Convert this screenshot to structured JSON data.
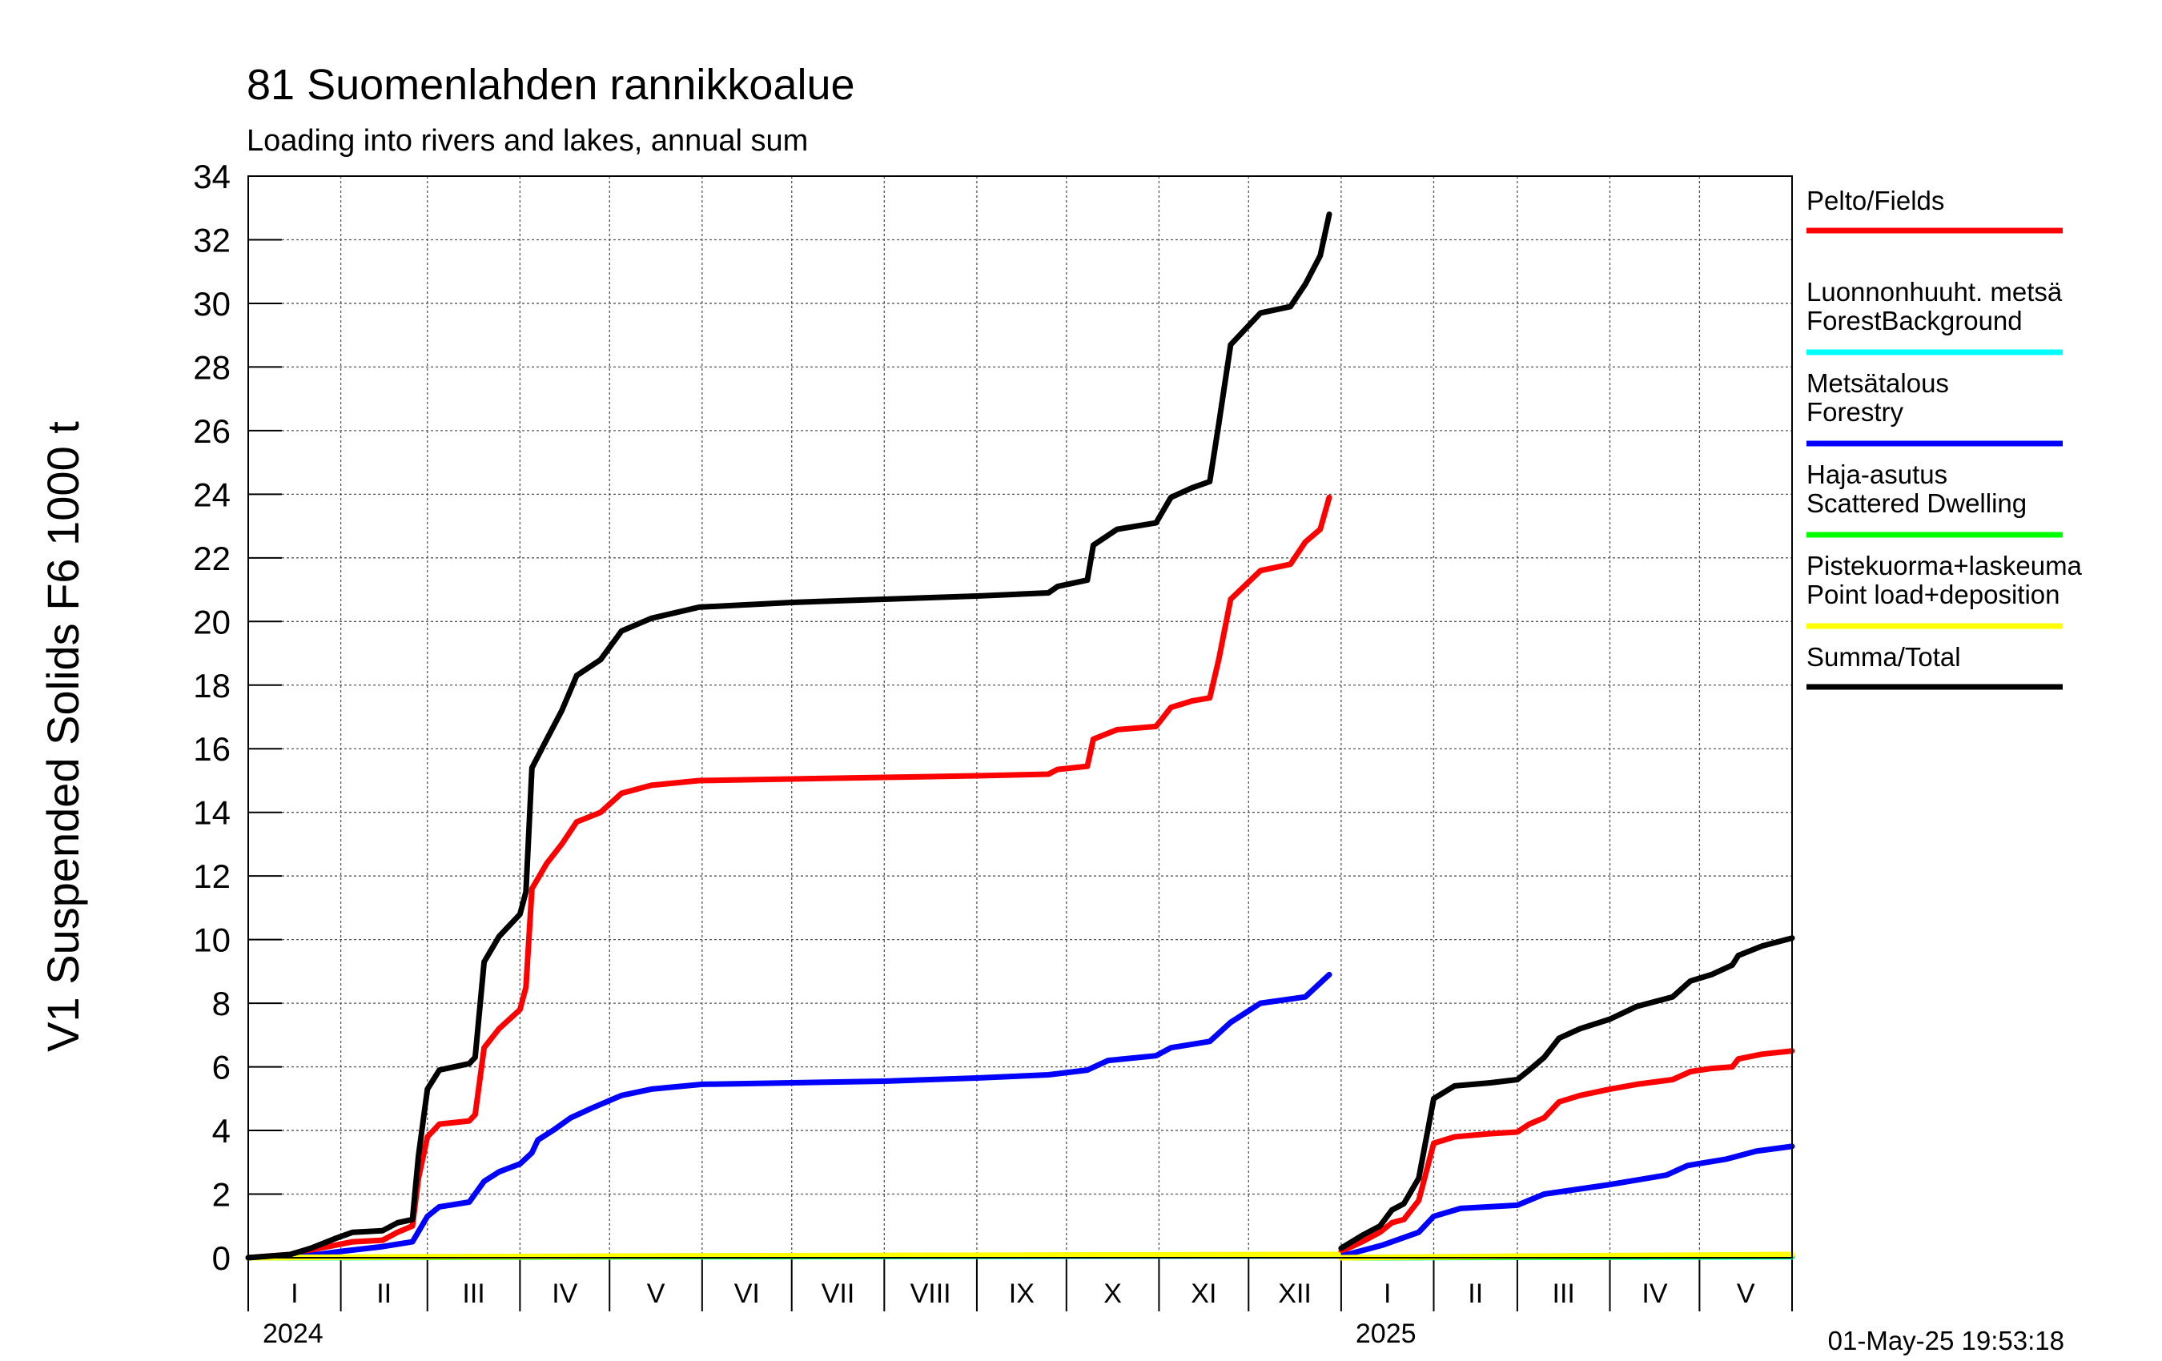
{
  "chart_data": {
    "type": "line",
    "title": "81 Suomenlahden rannikkoalue",
    "subtitle": "Loading into rivers and lakes, annual sum",
    "ylabel": "V1 Suspended Solids F6 1000 t",
    "ylim": [
      0,
      34
    ],
    "yticks": [
      0,
      2,
      4,
      6,
      8,
      10,
      12,
      14,
      16,
      18,
      20,
      22,
      24,
      26,
      28,
      30,
      32,
      34
    ],
    "xlim": [
      "2024-01-01",
      "2025-06-01"
    ],
    "grid": true,
    "legend_position": "right",
    "timestamp": "01-May-25 19:53:18",
    "months": [
      {
        "label": "I",
        "start": "2024-01-01"
      },
      {
        "label": "II",
        "start": "2024-02-01"
      },
      {
        "label": "III",
        "start": "2024-03-01"
      },
      {
        "label": "IV",
        "start": "2024-04-01"
      },
      {
        "label": "V",
        "start": "2024-05-01"
      },
      {
        "label": "VI",
        "start": "2024-06-01"
      },
      {
        "label": "VII",
        "start": "2024-07-01"
      },
      {
        "label": "VIII",
        "start": "2024-08-01"
      },
      {
        "label": "IX",
        "start": "2024-09-01"
      },
      {
        "label": "X",
        "start": "2024-10-01"
      },
      {
        "label": "XI",
        "start": "2024-11-01"
      },
      {
        "label": "XII",
        "start": "2024-12-01"
      },
      {
        "label": "I",
        "start": "2025-01-01"
      },
      {
        "label": "II",
        "start": "2025-02-01"
      },
      {
        "label": "III",
        "start": "2025-03-01"
      },
      {
        "label": "IV",
        "start": "2025-04-01"
      },
      {
        "label": "V",
        "start": "2025-05-01"
      }
    ],
    "years": [
      {
        "label": "2024",
        "start": "2024-01-01"
      },
      {
        "label": "2025",
        "start": "2025-01-01"
      }
    ],
    "series": [
      {
        "name": "Pelto/Fields",
        "color": "#ff0000",
        "segments": [
          [
            [
              "2024-01-01",
              0
            ],
            [
              "2024-01-15",
              0.1
            ],
            [
              "2024-01-25",
              0.3
            ],
            [
              "2024-02-05",
              0.5
            ],
            [
              "2024-02-15",
              0.55
            ],
            [
              "2024-02-20",
              0.8
            ],
            [
              "2024-02-25",
              1.0
            ],
            [
              "2024-02-27",
              2.5
            ],
            [
              "2024-03-01",
              3.8
            ],
            [
              "2024-03-05",
              4.2
            ],
            [
              "2024-03-15",
              4.3
            ],
            [
              "2024-03-17",
              4.5
            ],
            [
              "2024-03-20",
              6.6
            ],
            [
              "2024-03-25",
              7.2
            ],
            [
              "2024-04-01",
              7.8
            ],
            [
              "2024-04-03",
              8.5
            ],
            [
              "2024-04-05",
              11.6
            ],
            [
              "2024-04-10",
              12.4
            ],
            [
              "2024-04-15",
              13.0
            ],
            [
              "2024-04-20",
              13.7
            ],
            [
              "2024-04-28",
              14.0
            ],
            [
              "2024-05-05",
              14.6
            ],
            [
              "2024-05-15",
              14.85
            ],
            [
              "2024-05-31",
              15.0
            ],
            [
              "2024-07-01",
              15.05
            ],
            [
              "2024-08-01",
              15.1
            ],
            [
              "2024-09-01",
              15.15
            ],
            [
              "2024-09-25",
              15.2
            ],
            [
              "2024-09-28",
              15.35
            ],
            [
              "2024-10-08",
              15.45
            ],
            [
              "2024-10-10",
              16.3
            ],
            [
              "2024-10-18",
              16.6
            ],
            [
              "2024-10-31",
              16.7
            ],
            [
              "2024-11-05",
              17.3
            ],
            [
              "2024-11-12",
              17.5
            ],
            [
              "2024-11-18",
              17.6
            ],
            [
              "2024-11-21",
              18.8
            ],
            [
              "2024-11-25",
              20.7
            ],
            [
              "2024-12-05",
              21.6
            ],
            [
              "2024-12-15",
              21.8
            ],
            [
              "2024-12-20",
              22.5
            ],
            [
              "2024-12-25",
              22.9
            ],
            [
              "2024-12-28",
              23.9
            ]
          ],
          [
            [
              "2025-01-01",
              0.2
            ],
            [
              "2025-01-08",
              0.5
            ],
            [
              "2025-01-14",
              0.8
            ],
            [
              "2025-01-18",
              1.1
            ],
            [
              "2025-01-22",
              1.2
            ],
            [
              "2025-01-27",
              1.8
            ],
            [
              "2025-02-01",
              3.6
            ],
            [
              "2025-02-08",
              3.8
            ],
            [
              "2025-02-20",
              3.9
            ],
            [
              "2025-03-01",
              3.95
            ],
            [
              "2025-03-05",
              4.2
            ],
            [
              "2025-03-10",
              4.4
            ],
            [
              "2025-03-15",
              4.9
            ],
            [
              "2025-03-22",
              5.1
            ],
            [
              "2025-04-01",
              5.3
            ],
            [
              "2025-04-10",
              5.45
            ],
            [
              "2025-04-22",
              5.6
            ],
            [
              "2025-04-28",
              5.85
            ],
            [
              "2025-05-05",
              5.95
            ],
            [
              "2025-05-12",
              6.0
            ],
            [
              "2025-05-14",
              6.25
            ],
            [
              "2025-05-22",
              6.4
            ],
            [
              "2025-06-01",
              6.5
            ]
          ]
        ]
      },
      {
        "name": "Luonnonhuuht. metsä ForestBackground",
        "color": "#00ffff",
        "segments": [
          [
            [
              "2024-01-01",
              0
            ],
            [
              "2024-06-01",
              0.03
            ],
            [
              "2024-12-31",
              0.06
            ]
          ],
          [
            [
              "2025-01-01",
              0
            ],
            [
              "2025-06-01",
              0.03
            ]
          ]
        ]
      },
      {
        "name": "Metsätalous Forestry",
        "color": "#0000ff",
        "segments": [
          [
            [
              "2024-01-01",
              0
            ],
            [
              "2024-01-20",
              0.05
            ],
            [
              "2024-02-01",
              0.2
            ],
            [
              "2024-02-15",
              0.35
            ],
            [
              "2024-02-25",
              0.5
            ],
            [
              "2024-03-01",
              1.3
            ],
            [
              "2024-03-05",
              1.6
            ],
            [
              "2024-03-15",
              1.75
            ],
            [
              "2024-03-20",
              2.4
            ],
            [
              "2024-03-25",
              2.7
            ],
            [
              "2024-04-01",
              2.95
            ],
            [
              "2024-04-05",
              3.3
            ],
            [
              "2024-04-07",
              3.7
            ],
            [
              "2024-04-12",
              4.0
            ],
            [
              "2024-04-18",
              4.4
            ],
            [
              "2024-04-25",
              4.7
            ],
            [
              "2024-05-05",
              5.1
            ],
            [
              "2024-05-15",
              5.3
            ],
            [
              "2024-06-01",
              5.45
            ],
            [
              "2024-07-01",
              5.5
            ],
            [
              "2024-08-01",
              5.55
            ],
            [
              "2024-09-01",
              5.65
            ],
            [
              "2024-09-25",
              5.75
            ],
            [
              "2024-10-08",
              5.9
            ],
            [
              "2024-10-15",
              6.2
            ],
            [
              "2024-10-31",
              6.35
            ],
            [
              "2024-11-05",
              6.6
            ],
            [
              "2024-11-18",
              6.8
            ],
            [
              "2024-11-25",
              7.4
            ],
            [
              "2024-12-05",
              8.0
            ],
            [
              "2024-12-20",
              8.2
            ],
            [
              "2024-12-28",
              8.9
            ]
          ],
          [
            [
              "2025-01-01",
              0.05
            ],
            [
              "2025-01-15",
              0.4
            ],
            [
              "2025-01-27",
              0.8
            ],
            [
              "2025-02-01",
              1.3
            ],
            [
              "2025-02-10",
              1.55
            ],
            [
              "2025-03-01",
              1.65
            ],
            [
              "2025-03-10",
              2.0
            ],
            [
              "2025-04-01",
              2.3
            ],
            [
              "2025-04-20",
              2.6
            ],
            [
              "2025-04-27",
              2.9
            ],
            [
              "2025-05-10",
              3.1
            ],
            [
              "2025-05-20",
              3.35
            ],
            [
              "2025-06-01",
              3.5
            ]
          ]
        ]
      },
      {
        "name": "Haja-asutus Scattered Dwelling",
        "color": "#00ff00",
        "segments": [
          [
            [
              "2024-01-01",
              0
            ],
            [
              "2024-06-01",
              0.04
            ],
            [
              "2024-12-31",
              0.08
            ]
          ],
          [
            [
              "2025-01-01",
              0
            ],
            [
              "2025-06-01",
              0.05
            ]
          ]
        ]
      },
      {
        "name": "Pistekuorma+laskeuma Point load+deposition",
        "color": "#ffff00",
        "segments": [
          [
            [
              "2024-01-01",
              0
            ],
            [
              "2024-03-01",
              0.03
            ],
            [
              "2024-06-01",
              0.06
            ],
            [
              "2024-12-31",
              0.1
            ]
          ],
          [
            [
              "2025-01-01",
              0
            ],
            [
              "2025-03-01",
              0.05
            ],
            [
              "2025-06-01",
              0.1
            ]
          ]
        ]
      },
      {
        "name": "Summa/Total",
        "color": "#000000",
        "segments": [
          [
            [
              "2024-01-01",
              0
            ],
            [
              "2024-01-15",
              0.1
            ],
            [
              "2024-01-22",
              0.3
            ],
            [
              "2024-01-30",
              0.6
            ],
            [
              "2024-02-05",
              0.8
            ],
            [
              "2024-02-15",
              0.85
            ],
            [
              "2024-02-20",
              1.1
            ],
            [
              "2024-02-25",
              1.2
            ],
            [
              "2024-02-27",
              3.2
            ],
            [
              "2024-03-01",
              5.3
            ],
            [
              "2024-03-05",
              5.9
            ],
            [
              "2024-03-15",
              6.1
            ],
            [
              "2024-03-17",
              6.3
            ],
            [
              "2024-03-20",
              9.3
            ],
            [
              "2024-03-25",
              10.1
            ],
            [
              "2024-04-01",
              10.8
            ],
            [
              "2024-04-03",
              11.5
            ],
            [
              "2024-04-05",
              15.4
            ],
            [
              "2024-04-10",
              16.3
            ],
            [
              "2024-04-15",
              17.2
            ],
            [
              "2024-04-20",
              18.3
            ],
            [
              "2024-04-28",
              18.8
            ],
            [
              "2024-05-05",
              19.7
            ],
            [
              "2024-05-15",
              20.1
            ],
            [
              "2024-05-31",
              20.45
            ],
            [
              "2024-07-01",
              20.6
            ],
            [
              "2024-08-01",
              20.7
            ],
            [
              "2024-09-01",
              20.8
            ],
            [
              "2024-09-25",
              20.9
            ],
            [
              "2024-09-28",
              21.1
            ],
            [
              "2024-10-08",
              21.3
            ],
            [
              "2024-10-10",
              22.4
            ],
            [
              "2024-10-18",
              22.9
            ],
            [
              "2024-10-31",
              23.1
            ],
            [
              "2024-11-05",
              23.9
            ],
            [
              "2024-11-12",
              24.2
            ],
            [
              "2024-11-18",
              24.4
            ],
            [
              "2024-11-21",
              26.2
            ],
            [
              "2024-11-25",
              28.7
            ],
            [
              "2024-12-05",
              29.7
            ],
            [
              "2024-12-15",
              29.9
            ],
            [
              "2024-12-20",
              30.6
            ],
            [
              "2024-12-25",
              31.5
            ],
            [
              "2024-12-28",
              32.8
            ]
          ],
          [
            [
              "2025-01-01",
              0.3
            ],
            [
              "2025-01-08",
              0.7
            ],
            [
              "2025-01-14",
              1.0
            ],
            [
              "2025-01-18",
              1.5
            ],
            [
              "2025-01-22",
              1.7
            ],
            [
              "2025-01-27",
              2.5
            ],
            [
              "2025-02-01",
              5.0
            ],
            [
              "2025-02-08",
              5.4
            ],
            [
              "2025-02-20",
              5.5
            ],
            [
              "2025-03-01",
              5.6
            ],
            [
              "2025-03-05",
              5.9
            ],
            [
              "2025-03-10",
              6.3
            ],
            [
              "2025-03-15",
              6.9
            ],
            [
              "2025-03-22",
              7.2
            ],
            [
              "2025-04-01",
              7.5
            ],
            [
              "2025-04-10",
              7.9
            ],
            [
              "2025-04-22",
              8.2
            ],
            [
              "2025-04-28",
              8.7
            ],
            [
              "2025-05-05",
              8.9
            ],
            [
              "2025-05-12",
              9.2
            ],
            [
              "2025-05-14",
              9.5
            ],
            [
              "2025-05-22",
              9.8
            ],
            [
              "2025-06-01",
              10.05
            ]
          ]
        ]
      }
    ]
  },
  "legend": [
    {
      "line1": "Pelto/Fields",
      "line2": "",
      "color": "#ff0000"
    },
    {
      "line1": "Luonnonhuuht. metsä",
      "line2": "ForestBackground",
      "color": "#00ffff"
    },
    {
      "line1": "Metsätalous",
      "line2": "Forestry",
      "color": "#0000ff"
    },
    {
      "line1": "Haja-asutus",
      "line2": "Scattered Dwelling",
      "color": "#00ff00"
    },
    {
      "line1": "Pistekuorma+laskeuma",
      "line2": "Point load+deposition",
      "color": "#ffff00"
    },
    {
      "line1": "Summa/Total",
      "line2": "",
      "color": "#000000"
    }
  ]
}
